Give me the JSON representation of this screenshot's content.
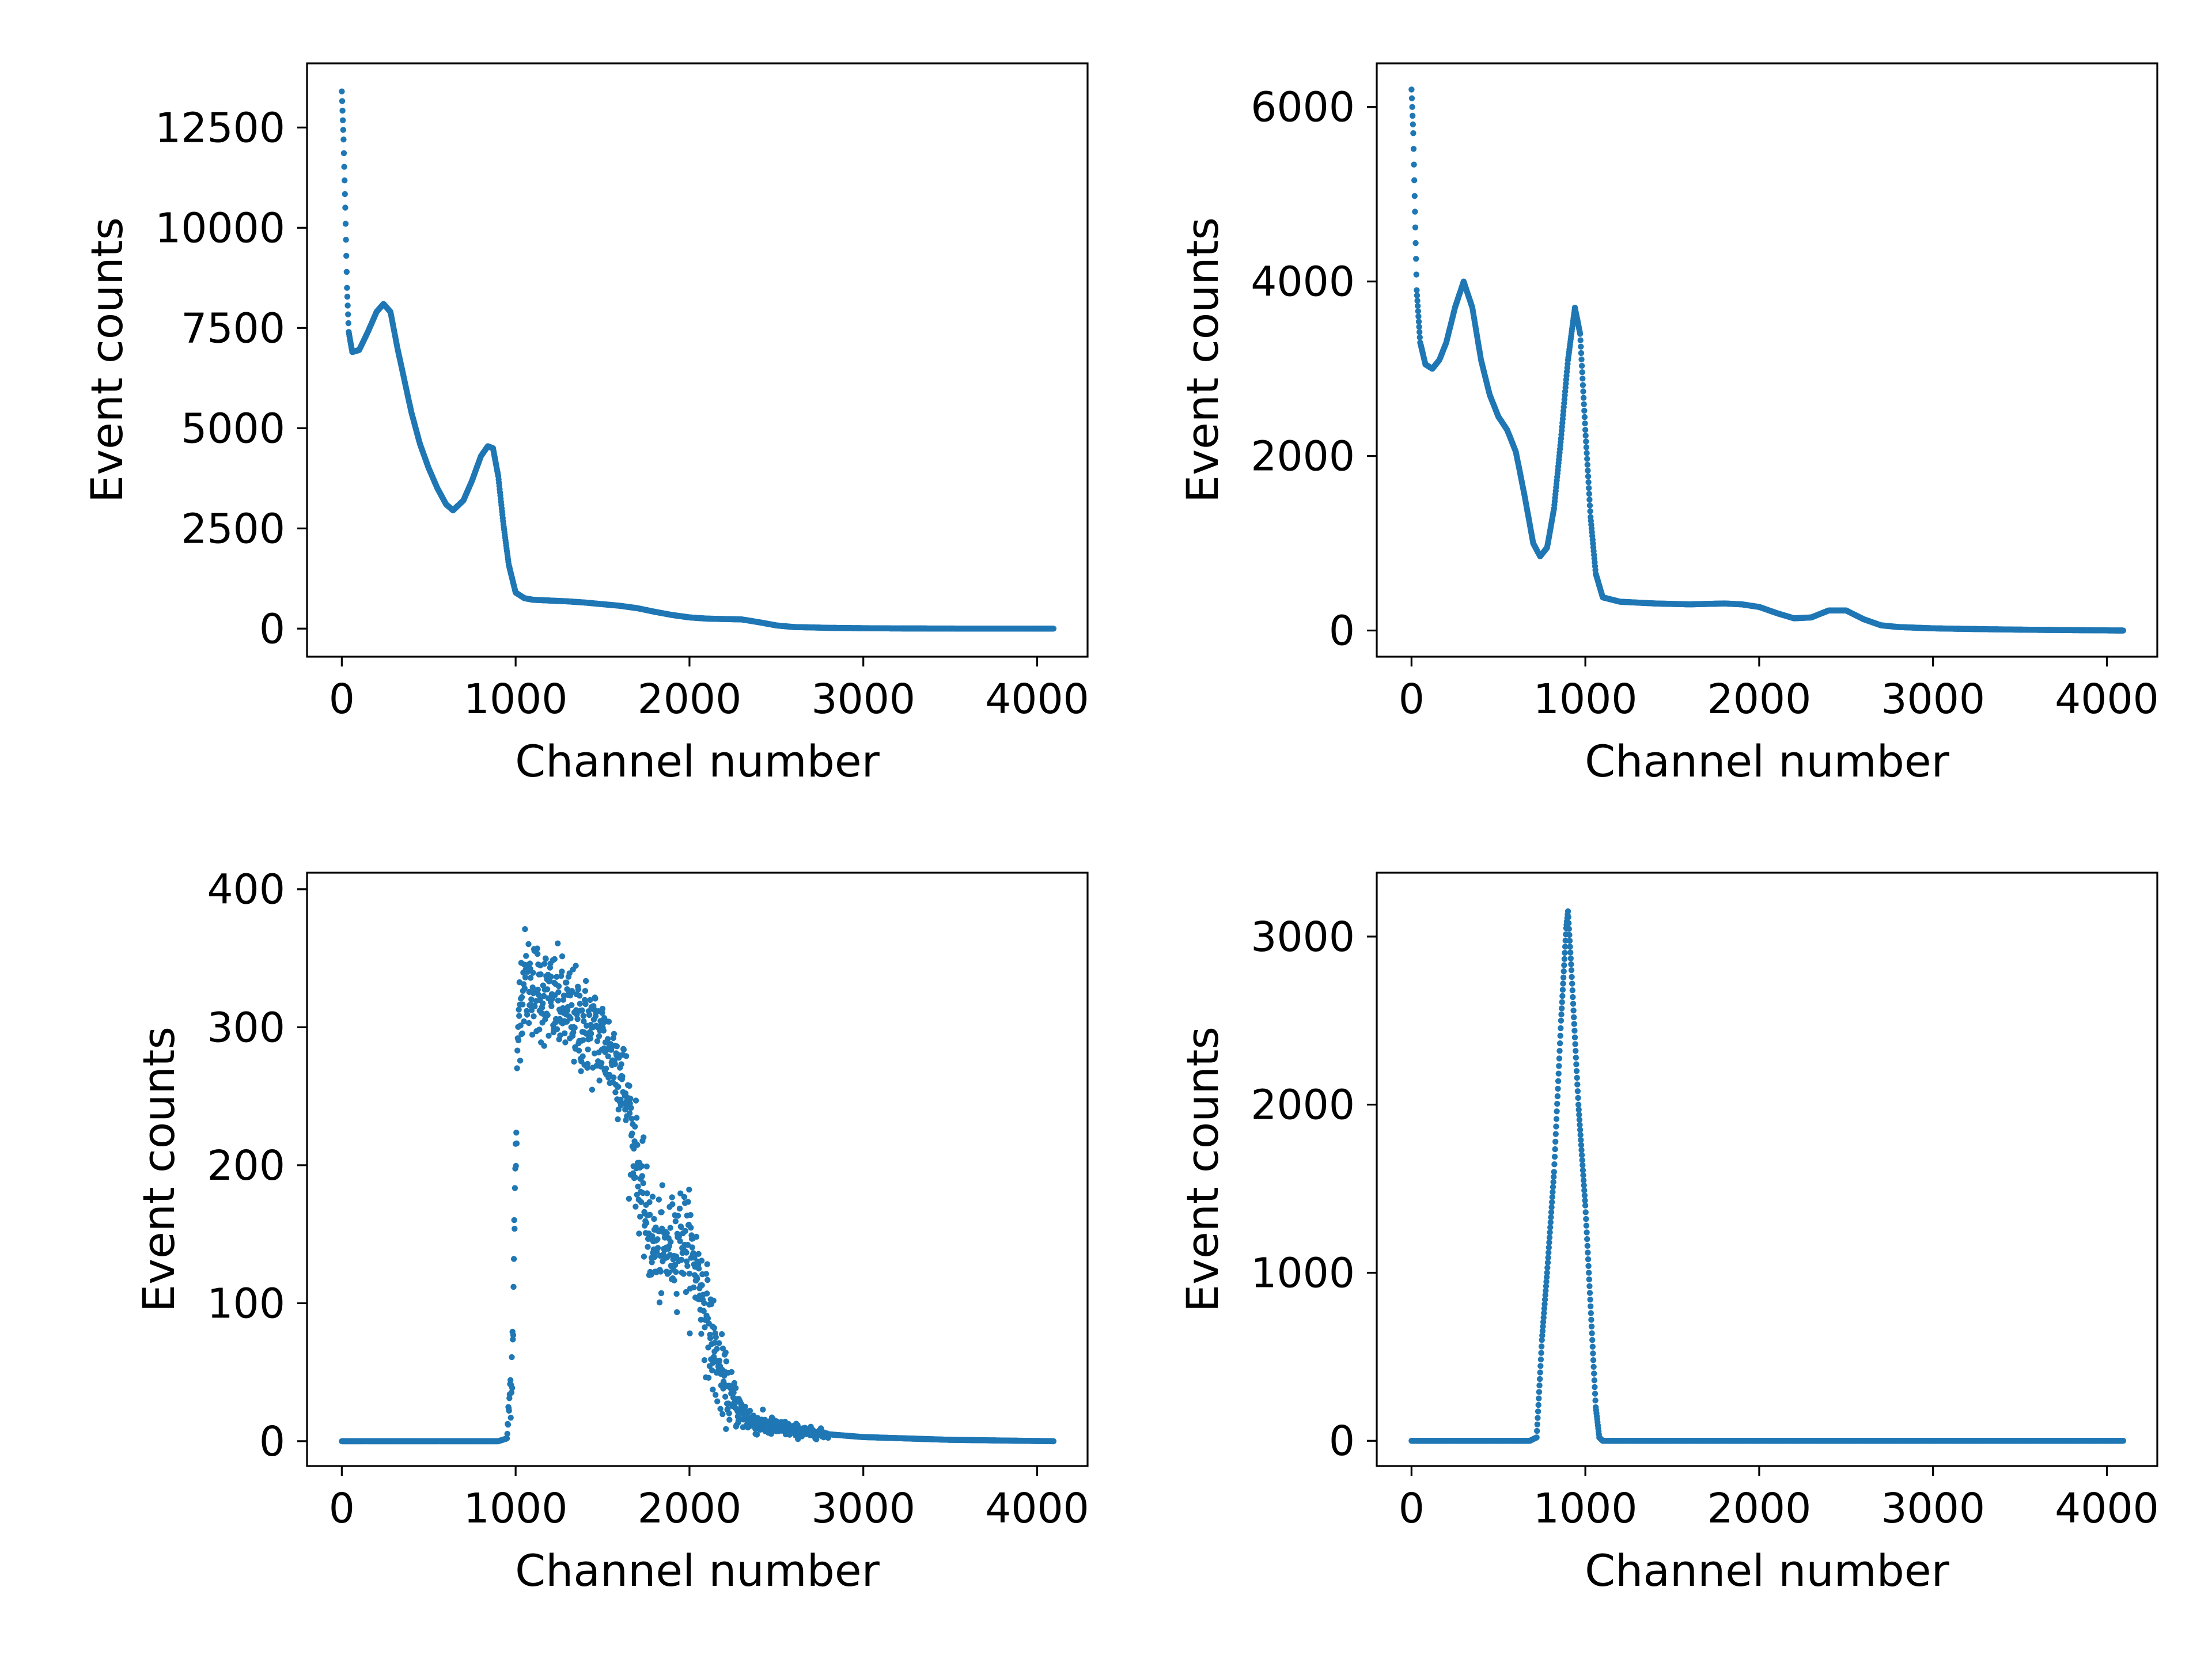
{
  "marker_color": "#1f77b4",
  "chart_data": [
    {
      "type": "scatter",
      "title": "",
      "xlabel": "Channel number",
      "ylabel": "Event counts",
      "xlim": [
        -200,
        4290
      ],
      "ylim": [
        -700,
        14100
      ],
      "xticks": [
        0,
        1000,
        2000,
        3000,
        4000
      ],
      "yticks": [
        0,
        2500,
        5000,
        7500,
        10000,
        12500
      ],
      "grid": false,
      "legend": "none",
      "points": [
        [
          0,
          13400
        ],
        [
          10,
          12200
        ],
        [
          20,
          10500
        ],
        [
          30,
          8500
        ],
        [
          40,
          7400
        ],
        [
          60,
          6900
        ],
        [
          100,
          6950
        ],
        [
          150,
          7400
        ],
        [
          200,
          7900
        ],
        [
          240,
          8100
        ],
        [
          280,
          7900
        ],
        [
          320,
          7000
        ],
        [
          360,
          6200
        ],
        [
          400,
          5400
        ],
        [
          450,
          4600
        ],
        [
          500,
          4000
        ],
        [
          550,
          3500
        ],
        [
          600,
          3100
        ],
        [
          640,
          2950
        ],
        [
          700,
          3200
        ],
        [
          750,
          3700
        ],
        [
          800,
          4300
        ],
        [
          840,
          4550
        ],
        [
          870,
          4500
        ],
        [
          900,
          3800
        ],
        [
          930,
          2600
        ],
        [
          960,
          1600
        ],
        [
          1000,
          900
        ],
        [
          1050,
          760
        ],
        [
          1100,
          720
        ],
        [
          1200,
          700
        ],
        [
          1300,
          680
        ],
        [
          1400,
          650
        ],
        [
          1500,
          610
        ],
        [
          1600,
          570
        ],
        [
          1700,
          510
        ],
        [
          1800,
          420
        ],
        [
          1900,
          340
        ],
        [
          2000,
          280
        ],
        [
          2100,
          250
        ],
        [
          2200,
          240
        ],
        [
          2300,
          230
        ],
        [
          2400,
          160
        ],
        [
          2500,
          80
        ],
        [
          2600,
          40
        ],
        [
          2800,
          20
        ],
        [
          3000,
          10
        ],
        [
          3200,
          5
        ],
        [
          3500,
          2
        ],
        [
          3800,
          1
        ],
        [
          4095,
          0
        ]
      ]
    },
    {
      "type": "scatter",
      "title": "",
      "xlabel": "Channel number",
      "ylabel": "Event counts",
      "xlim": [
        -200,
        4290
      ],
      "ylim": [
        -300,
        6500
      ],
      "xticks": [
        0,
        1000,
        2000,
        3000,
        4000
      ],
      "yticks": [
        0,
        2000,
        4000,
        6000
      ],
      "grid": false,
      "legend": "none",
      "points": [
        [
          0,
          6200
        ],
        [
          10,
          5700
        ],
        [
          20,
          4800
        ],
        [
          30,
          3900
        ],
        [
          50,
          3300
        ],
        [
          80,
          3050
        ],
        [
          120,
          3000
        ],
        [
          160,
          3100
        ],
        [
          200,
          3300
        ],
        [
          250,
          3700
        ],
        [
          300,
          4000
        ],
        [
          350,
          3700
        ],
        [
          400,
          3100
        ],
        [
          450,
          2700
        ],
        [
          500,
          2450
        ],
        [
          550,
          2300
        ],
        [
          600,
          2050
        ],
        [
          650,
          1550
        ],
        [
          700,
          1000
        ],
        [
          740,
          850
        ],
        [
          780,
          950
        ],
        [
          820,
          1400
        ],
        [
          860,
          2200
        ],
        [
          900,
          3100
        ],
        [
          940,
          3700
        ],
        [
          970,
          3400
        ],
        [
          1000,
          2300
        ],
        [
          1030,
          1300
        ],
        [
          1060,
          650
        ],
        [
          1100,
          380
        ],
        [
          1200,
          330
        ],
        [
          1400,
          310
        ],
        [
          1600,
          300
        ],
        [
          1800,
          310
        ],
        [
          1900,
          300
        ],
        [
          2000,
          270
        ],
        [
          2100,
          200
        ],
        [
          2200,
          140
        ],
        [
          2300,
          150
        ],
        [
          2400,
          230
        ],
        [
          2500,
          230
        ],
        [
          2600,
          130
        ],
        [
          2700,
          60
        ],
        [
          2800,
          40
        ],
        [
          3000,
          25
        ],
        [
          3300,
          15
        ],
        [
          3600,
          8
        ],
        [
          3900,
          3
        ],
        [
          4095,
          0
        ]
      ]
    },
    {
      "type": "scatter",
      "title": "",
      "xlabel": "Channel number",
      "ylabel": "Event counts",
      "xlim": [
        -200,
        4290
      ],
      "ylim": [
        -18,
        412
      ],
      "xticks": [
        0,
        1000,
        2000,
        3000,
        4000
      ],
      "yticks": [
        0,
        100,
        200,
        300,
        400
      ],
      "grid": false,
      "legend": "none",
      "points": [
        [
          0,
          0
        ],
        [
          200,
          0
        ],
        [
          400,
          0
        ],
        [
          600,
          0
        ],
        [
          800,
          0
        ],
        [
          900,
          0
        ],
        [
          950,
          2
        ],
        [
          980,
          60
        ],
        [
          1000,
          200
        ],
        [
          1020,
          320
        ],
        [
          1050,
          335
        ],
        [
          1100,
          330
        ],
        [
          1200,
          320
        ],
        [
          1300,
          310
        ],
        [
          1400,
          300
        ],
        [
          1500,
          290
        ],
        [
          1600,
          270
        ],
        [
          1650,
          240
        ],
        [
          1700,
          200
        ],
        [
          1750,
          160
        ],
        [
          1800,
          140
        ],
        [
          1850,
          135
        ],
        [
          1900,
          140
        ],
        [
          1950,
          150
        ],
        [
          2000,
          140
        ],
        [
          2050,
          120
        ],
        [
          2100,
          90
        ],
        [
          2150,
          60
        ],
        [
          2200,
          40
        ],
        [
          2300,
          20
        ],
        [
          2400,
          12
        ],
        [
          2500,
          10
        ],
        [
          2700,
          6
        ],
        [
          3000,
          3
        ],
        [
          3500,
          1
        ],
        [
          4095,
          0
        ]
      ],
      "noise": 18
    },
    {
      "type": "scatter",
      "title": "",
      "xlabel": "Channel number",
      "ylabel": "Event counts",
      "xlim": [
        -200,
        4290
      ],
      "ylim": [
        -150,
        3380
      ],
      "xticks": [
        0,
        1000,
        2000,
        3000,
        4000
      ],
      "yticks": [
        0,
        1000,
        2000,
        3000
      ],
      "grid": false,
      "legend": "none",
      "points": [
        [
          0,
          0
        ],
        [
          400,
          0
        ],
        [
          680,
          0
        ],
        [
          720,
          20
        ],
        [
          750,
          600
        ],
        [
          780,
          1000
        ],
        [
          820,
          1600
        ],
        [
          860,
          2500
        ],
        [
          890,
          3050
        ],
        [
          900,
          3150
        ],
        [
          920,
          2800
        ],
        [
          960,
          2000
        ],
        [
          1000,
          1400
        ],
        [
          1030,
          800
        ],
        [
          1060,
          200
        ],
        [
          1080,
          20
        ],
        [
          1100,
          0
        ],
        [
          1500,
          0
        ],
        [
          2500,
          0
        ],
        [
          3500,
          0
        ],
        [
          4095,
          0
        ]
      ]
    }
  ]
}
